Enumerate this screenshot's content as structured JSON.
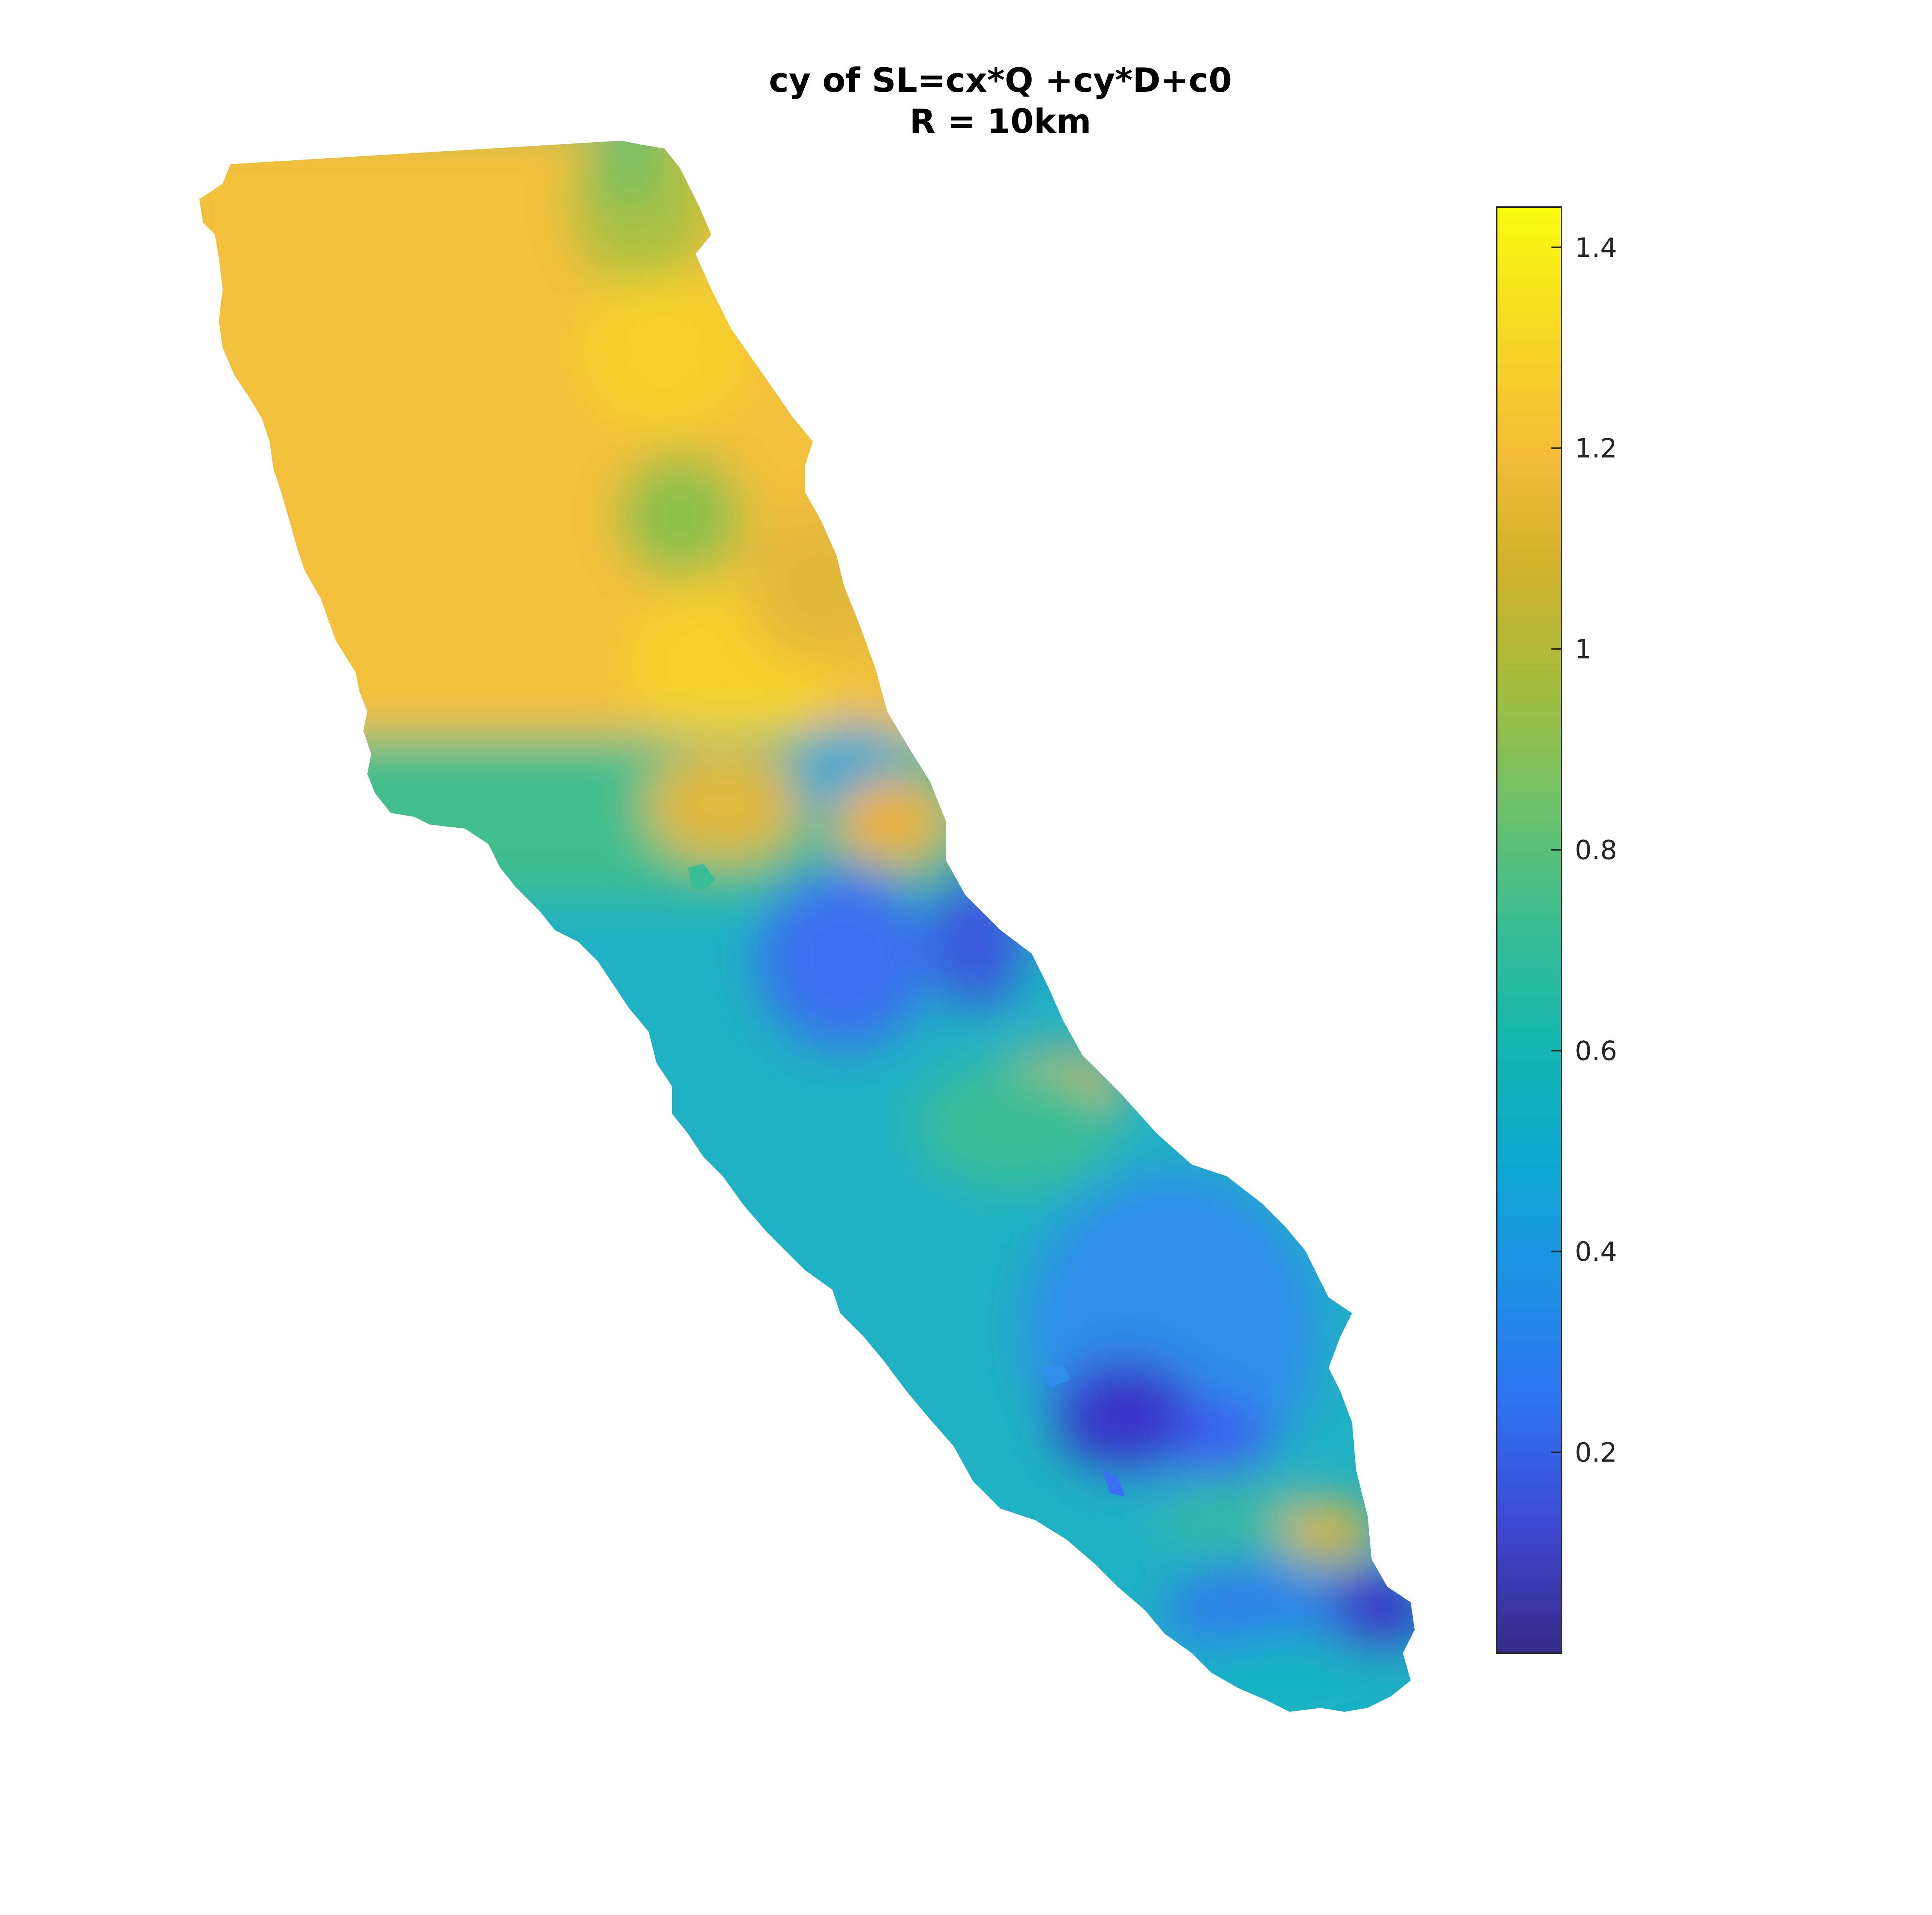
{
  "title": {
    "line1": "cy of SL=cx*Q +cy*D+c0",
    "line2": "R = 10km"
  },
  "colorbar": {
    "colormap": "parula",
    "min": 0,
    "max": 1.44,
    "ticks": [
      {
        "value": 0.2,
        "label": "0.2"
      },
      {
        "value": 0.4,
        "label": "0.4"
      },
      {
        "value": 0.6,
        "label": "0.6"
      },
      {
        "value": 0.8,
        "label": "0.8"
      },
      {
        "value": 1.0,
        "label": "1"
      },
      {
        "value": 1.2,
        "label": "1.2"
      },
      {
        "value": 1.4,
        "label": "1.4"
      }
    ],
    "colors": [
      "#352a87",
      "#3e46cf",
      "#2f6ff2",
      "#1e8ee6",
      "#0ea6d2",
      "#11b6b1",
      "#37bd94",
      "#6bc06a",
      "#a3bd3e",
      "#d0b12a",
      "#f6bd35",
      "#f6d923",
      "#f9fb0e"
    ]
  },
  "map": {
    "landmass": "island",
    "description_colors": {
      "north": "#f3c237",
      "middle": "#19b0c4",
      "south": "#3b8df0",
      "low": "#3939c8",
      "accent_high": "#e9b33a",
      "green": "#7cc25a"
    }
  }
}
